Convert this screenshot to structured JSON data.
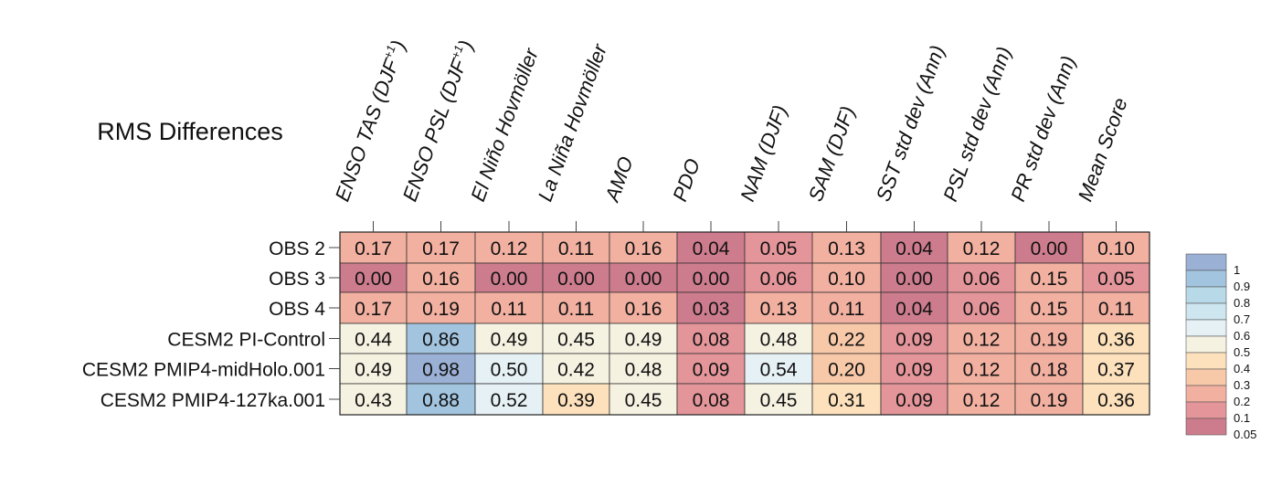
{
  "chart_data": {
    "type": "heatmap",
    "title": "RMS Differences",
    "columns": [
      "ENSO TAS (DJF+1)",
      "ENSO PSL (DJF+1)",
      "El Niño Hovmöller",
      "La Niña Hovmöller",
      "AMO",
      "PDO",
      "NAM (DJF)",
      "SAM (DJF)",
      "SST std dev (Ann)",
      "PSL std dev (Ann)",
      "PR std dev (Ann)",
      "Mean Score"
    ],
    "column_parts": [
      {
        "base": "ENSO TAS (DJF",
        "sup": "+1",
        "tail": ")"
      },
      {
        "base": "ENSO PSL (DJF",
        "sup": "+1",
        "tail": ")"
      },
      {
        "base": "El Niño Hovmöller",
        "sup": "",
        "tail": ""
      },
      {
        "base": "La Niña Hovmöller",
        "sup": "",
        "tail": ""
      },
      {
        "base": "AMO",
        "sup": "",
        "tail": ""
      },
      {
        "base": "PDO",
        "sup": "",
        "tail": ""
      },
      {
        "base": "NAM (DJF)",
        "sup": "",
        "tail": ""
      },
      {
        "base": "SAM (DJF)",
        "sup": "",
        "tail": ""
      },
      {
        "base": "SST std dev (Ann)",
        "sup": "",
        "tail": ""
      },
      {
        "base": "PSL std dev (Ann)",
        "sup": "",
        "tail": ""
      },
      {
        "base": "PR std dev (Ann)",
        "sup": "",
        "tail": ""
      },
      {
        "base": "Mean Score",
        "sup": "",
        "tail": ""
      }
    ],
    "rows": [
      "OBS 2",
      "OBS 3",
      "OBS 4",
      "CESM2 PI-Control",
      "CESM2 PMIP4-midHolo.001",
      "CESM2 PMIP4-127ka.001"
    ],
    "values": [
      [
        "0.17",
        "0.17",
        "0.12",
        "0.11",
        "0.16",
        "0.04",
        "0.05",
        "0.13",
        "0.04",
        "0.12",
        "0.00",
        "0.10"
      ],
      [
        "0.00",
        "0.16",
        "0.00",
        "0.00",
        "0.00",
        "0.00",
        "0.06",
        "0.10",
        "0.00",
        "0.06",
        "0.15",
        "0.05"
      ],
      [
        "0.17",
        "0.19",
        "0.11",
        "0.11",
        "0.16",
        "0.03",
        "0.13",
        "0.11",
        "0.04",
        "0.06",
        "0.15",
        "0.11"
      ],
      [
        "0.44",
        "0.86",
        "0.49",
        "0.45",
        "0.49",
        "0.08",
        "0.48",
        "0.22",
        "0.09",
        "0.12",
        "0.19",
        "0.36"
      ],
      [
        "0.49",
        "0.98",
        "0.50",
        "0.42",
        "0.48",
        "0.09",
        "0.54",
        "0.20",
        "0.09",
        "0.12",
        "0.18",
        "0.37"
      ],
      [
        "0.43",
        "0.88",
        "0.52",
        "0.39",
        "0.45",
        "0.08",
        "0.45",
        "0.31",
        "0.09",
        "0.12",
        "0.19",
        "0.36"
      ]
    ],
    "colorbar": {
      "tick_labels": [
        "1",
        "0.9",
        "0.8",
        "0.7",
        "0.6",
        "0.5",
        "0.4",
        "0.3",
        "0.2",
        "0.1",
        "0.05"
      ],
      "bin_edges": [
        0,
        0.05,
        0.1,
        0.2,
        0.3,
        0.4,
        0.5,
        0.6,
        0.7,
        0.8,
        0.9,
        1.0
      ],
      "bin_colors": [
        "#cd7c8d",
        "#e4959a",
        "#f2b0a1",
        "#f8c9a9",
        "#fce1bc",
        "#f6f2e2",
        "#e6f1f6",
        "#cee6ef",
        "#b7d9e8",
        "#a2c4df",
        "#9ab0d4"
      ],
      "placement": "right"
    }
  }
}
